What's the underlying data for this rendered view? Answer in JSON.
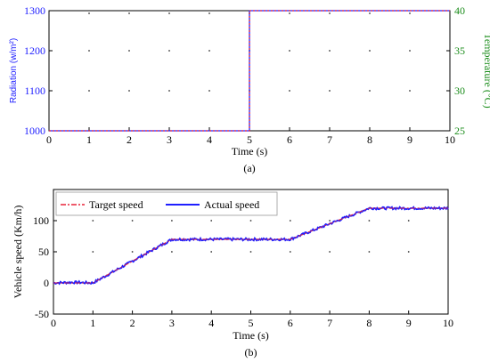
{
  "chart_data": [
    {
      "panel_label": "(a)",
      "type": "line",
      "xlabel": "Time (s)",
      "xlim": [
        0,
        10
      ],
      "xticks": [
        "0",
        "1",
        "2",
        "3",
        "4",
        "5",
        "6",
        "7",
        "8",
        "9",
        "10"
      ],
      "ylabel_left": "Radiation (w/m²)",
      "ylim_left": [
        1000,
        1300
      ],
      "yticks_left": [
        "1000",
        "1100",
        "1200",
        "1300"
      ],
      "ylabel_right": "Temperature (°C)",
      "ylim_right": [
        25,
        40
      ],
      "yticks_right": [
        "25",
        "30",
        "35",
        "40"
      ],
      "series": [
        {
          "axis": "left",
          "color": "#1f1fff",
          "style": "solid",
          "points": [
            [
              0,
              1000
            ],
            [
              5,
              1000
            ],
            [
              5,
              1300
            ],
            [
              10,
              1300
            ]
          ]
        },
        {
          "axis": "right",
          "color": "#e8243a",
          "style": "dotted",
          "points": [
            [
              0,
              25
            ],
            [
              5,
              25
            ],
            [
              5,
              40
            ],
            [
              10,
              40
            ]
          ]
        }
      ],
      "left_axis_color": "#1f1fff",
      "right_axis_color": "#1a8c1a"
    },
    {
      "panel_label": "(b)",
      "type": "line",
      "xlabel": "Time (s)",
      "xlim": [
        0,
        10
      ],
      "xticks": [
        "0",
        "1",
        "2",
        "3",
        "4",
        "5",
        "6",
        "7",
        "8",
        "9",
        "10"
      ],
      "ylabel": "Vehicle speed (Km/h)",
      "ylim": [
        -50,
        150
      ],
      "yticks": [
        "-50",
        "0",
        "50",
        "100"
      ],
      "ytick_values": [
        -50,
        0,
        50,
        100
      ],
      "legend_position": "top-left",
      "series": [
        {
          "name": "Target speed",
          "color": "#e8243a",
          "style": "dashdot",
          "points": [
            [
              0,
              0
            ],
            [
              1,
              0
            ],
            [
              3,
              70
            ],
            [
              6,
              70
            ],
            [
              8,
              120
            ],
            [
              10,
              120
            ]
          ]
        },
        {
          "name": "Actual speed",
          "color": "#1f1fff",
          "style": "solid",
          "points": [
            [
              0,
              0
            ],
            [
              0.5,
              1
            ],
            [
              1,
              0
            ],
            [
              2,
              35
            ],
            [
              3,
              70
            ],
            [
              6,
              70
            ],
            [
              7,
              95
            ],
            [
              8,
              120
            ],
            [
              10,
              120
            ]
          ]
        }
      ]
    }
  ]
}
